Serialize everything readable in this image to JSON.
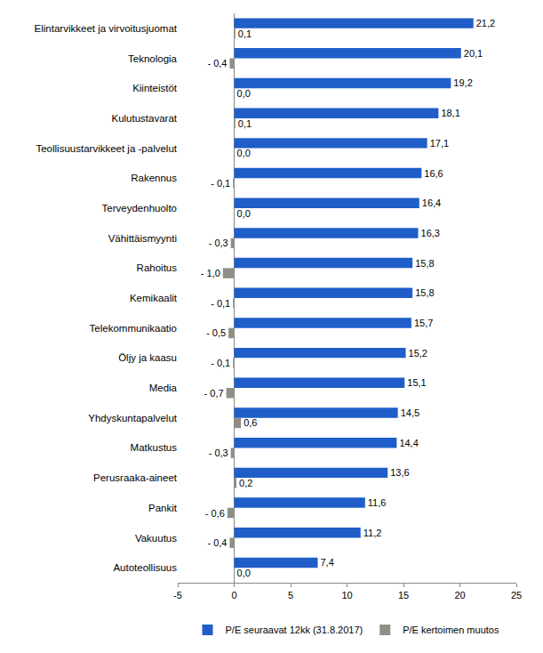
{
  "chart_data": {
    "type": "bar",
    "orientation": "horizontal",
    "categories": [
      "Elintarvikkeet ja virvoitusjuomat",
      "Teknologia",
      "Kiinteistöt",
      "Kulutustavarat",
      "Teollisuustarvikkeet ja -palvelut",
      "Rakennus",
      "Terveydenhuolto",
      "Vähittäismyynti",
      "Rahoitus",
      "Kemikaalit",
      "Telekommunikaatio",
      "Öljy ja kaasu",
      "Media",
      "Yhdyskuntapalvelut",
      "Matkustus",
      "Perusraaka-aineet",
      "Pankit",
      "Vakuutus",
      "Autoteollisuus"
    ],
    "series": [
      {
        "name": "P/E seuraavat 12kk (31.8.2017)",
        "color": "#1f5ec8",
        "values": [
          21.2,
          20.1,
          19.2,
          18.1,
          17.1,
          16.6,
          16.4,
          16.3,
          15.8,
          15.8,
          15.7,
          15.2,
          15.1,
          14.5,
          14.4,
          13.6,
          11.6,
          11.2,
          7.4
        ],
        "value_labels": [
          "21,2",
          "20,1",
          "19,2",
          "18,1",
          "17,1",
          "16,6",
          "16,4",
          "16,3",
          "15,8",
          "15,8",
          "15,7",
          "15,2",
          "15,1",
          "14,5",
          "14,4",
          "13,6",
          "11,6",
          "11,2",
          "7,4"
        ]
      },
      {
        "name": "P/E kertoimen muutos",
        "color": "#8f8f86",
        "values": [
          0.1,
          -0.4,
          0.0,
          0.1,
          0.0,
          -0.1,
          0.0,
          -0.3,
          -1.0,
          -0.1,
          -0.5,
          -0.1,
          -0.7,
          0.6,
          -0.3,
          0.2,
          -0.6,
          -0.4,
          0.0
        ],
        "value_labels": [
          "0,1",
          "- 0,4",
          "0,0",
          "0,1",
          "0,0",
          "- 0,1",
          "0,0",
          "- 0,3",
          "- 1,0",
          "- 0,1",
          "- 0,5",
          "- 0,1",
          "- 0,7",
          "0,6",
          "- 0,3",
          "0,2",
          "- 0,6",
          "- 0,4",
          "0,0"
        ]
      }
    ],
    "xlim": [
      -5,
      25
    ],
    "xticks": [
      -5,
      0,
      5,
      10,
      15,
      20,
      25
    ],
    "grid": false,
    "legend": "bottom",
    "data_labels": true
  }
}
